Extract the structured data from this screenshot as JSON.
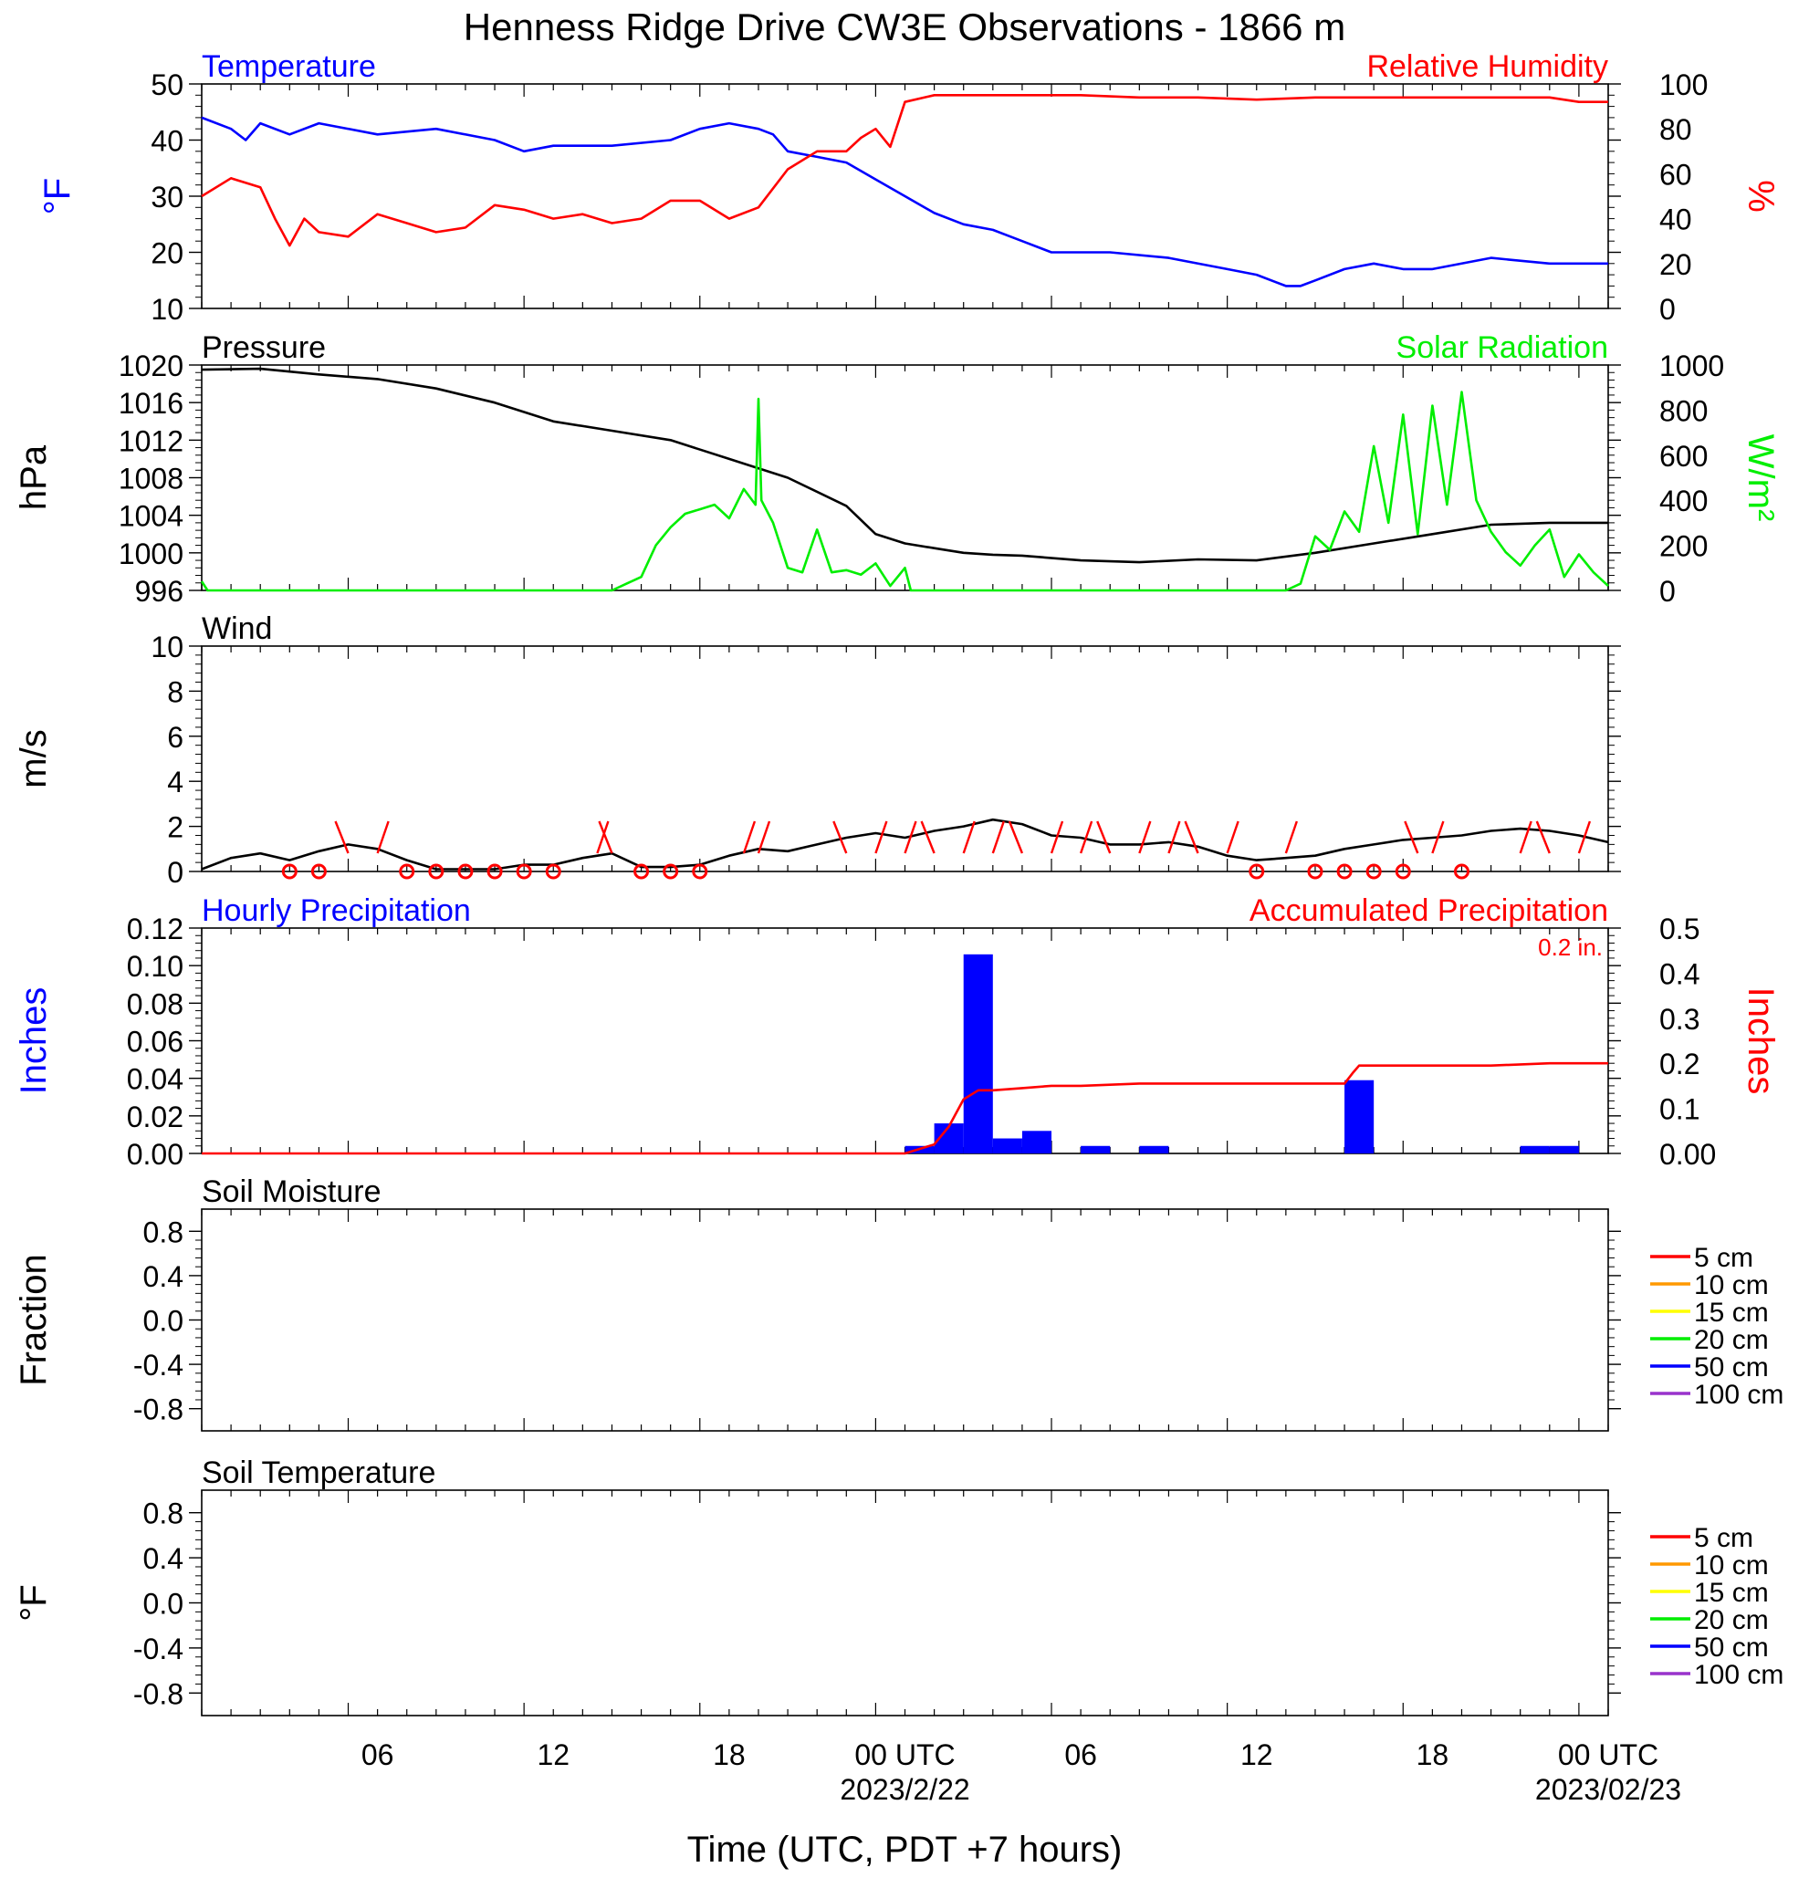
{
  "title": "Henness Ridge Drive CW3E Observations - 1866 m",
  "xaxis": {
    "label": "Time (UTC, PDT +7 hours)",
    "range_hours": [
      0,
      48
    ],
    "ticks": [
      {
        "h": 5,
        "label": "06"
      },
      {
        "h": 11,
        "label": "12"
      },
      {
        "h": 17,
        "label": "18"
      },
      {
        "h": 23,
        "label": "00 UTC",
        "date": "2023/2/22"
      },
      {
        "h": 29,
        "label": "06"
      },
      {
        "h": 35,
        "label": "12"
      },
      {
        "h": 41,
        "label": "18"
      },
      {
        "h": 47,
        "label": "00 UTC",
        "date": "2023/02/23"
      }
    ]
  },
  "panels": {
    "temp_rh": {
      "left_title": "Temperature",
      "right_title": "Relative Humidity",
      "left_units": "°F",
      "right_units": "%",
      "left_ticks": [
        "10",
        "20",
        "30",
        "40",
        "50"
      ],
      "right_ticks": [
        "0",
        "20",
        "40",
        "60",
        "80",
        "100"
      ]
    },
    "pressure": {
      "left_title": "Pressure",
      "right_title": "Solar Radiation",
      "left_units": "hPa",
      "right_units": "W/m²",
      "left_ticks": [
        "996",
        "1000",
        "1004",
        "1008",
        "1012",
        "1016",
        "1020"
      ],
      "right_ticks": [
        "0",
        "200",
        "400",
        "600",
        "800",
        "1000"
      ]
    },
    "wind": {
      "left_title": "Wind",
      "left_units": "m/s",
      "left_ticks": [
        "0",
        "2",
        "4",
        "6",
        "8",
        "10"
      ]
    },
    "precip": {
      "left_title": "Hourly Precipitation",
      "right_title": "Accumulated Precipitation",
      "total_label": "0.2 in.",
      "left_units": "Inches",
      "right_units": "Inches",
      "left_ticks": [
        "0.00",
        "0.02",
        "0.04",
        "0.06",
        "0.08",
        "0.10",
        "0.12"
      ],
      "right_ticks": [
        "0.00",
        "0.1",
        "0.2",
        "0.3",
        "0.4",
        "0.5"
      ]
    },
    "soil_moisture": {
      "left_title": "Soil Moisture",
      "left_units": "Fraction",
      "left_ticks": [
        "-0.8",
        "-0.4",
        "0.0",
        "0.4",
        "0.8"
      ],
      "legend": [
        {
          "label": "5 cm",
          "color": "#ff0000"
        },
        {
          "label": "10 cm",
          "color": "#ff9900"
        },
        {
          "label": "15 cm",
          "color": "#ffff00"
        },
        {
          "label": "20 cm",
          "color": "#00ee00"
        },
        {
          "label": "50 cm",
          "color": "#0000ff"
        },
        {
          "label": "100 cm",
          "color": "#9933cc"
        }
      ]
    },
    "soil_temp": {
      "left_title": "Soil Temperature",
      "left_units": "°F",
      "left_ticks": [
        "-0.8",
        "-0.4",
        "0.0",
        "0.4",
        "0.8"
      ],
      "legend": [
        {
          "label": "5 cm",
          "color": "#ff0000"
        },
        {
          "label": "10 cm",
          "color": "#ff9900"
        },
        {
          "label": "15 cm",
          "color": "#ffff00"
        },
        {
          "label": "20 cm",
          "color": "#00ee00"
        },
        {
          "label": "50 cm",
          "color": "#0000ff"
        },
        {
          "label": "100 cm",
          "color": "#9933cc"
        }
      ]
    }
  },
  "chart_data": [
    {
      "type": "line",
      "x_units": "hours since 2023-02-21 01 UTC",
      "ylim_left": [
        10,
        50
      ],
      "ylim_right": [
        0,
        100
      ],
      "series": [
        {
          "name": "Temperature",
          "axis": "left",
          "color": "#0000ff",
          "x": [
            0,
            1,
            1.5,
            2,
            3,
            4,
            6,
            8,
            10,
            11,
            12,
            14,
            16,
            17,
            18,
            19,
            19.5,
            20,
            21,
            22,
            23,
            24,
            25,
            26,
            27,
            28,
            29,
            31,
            33,
            35,
            36,
            37,
            37.5,
            38,
            39,
            40,
            41,
            42,
            44,
            46,
            48
          ],
          "y": [
            44,
            42,
            40,
            43,
            41,
            43,
            41,
            42,
            40,
            38,
            39,
            39,
            40,
            42,
            43,
            42,
            41,
            38,
            37,
            36,
            33,
            30,
            27,
            25,
            24,
            22,
            20,
            20,
            19,
            17,
            16,
            14,
            14,
            15,
            17,
            18,
            17,
            17,
            19,
            18,
            18
          ]
        },
        {
          "name": "Relative Humidity",
          "axis": "right",
          "color": "#ff0000",
          "x": [
            0,
            1,
            2,
            2.5,
            3,
            3.5,
            4,
            5,
            6,
            7,
            8,
            9,
            10,
            11,
            12,
            13,
            14,
            15,
            16,
            17,
            18,
            19,
            20,
            21,
            22,
            22.5,
            23,
            23.5,
            24,
            25,
            26,
            28,
            30,
            32,
            34,
            36,
            38,
            40,
            42,
            44,
            46,
            47,
            48
          ],
          "y": [
            50,
            58,
            54,
            40,
            28,
            40,
            34,
            32,
            42,
            38,
            34,
            36,
            46,
            44,
            40,
            42,
            38,
            40,
            48,
            48,
            40,
            45,
            62,
            70,
            70,
            76,
            80,
            72,
            92,
            95,
            95,
            95,
            95,
            94,
            94,
            93,
            94,
            94,
            94,
            94,
            94,
            92,
            92
          ]
        }
      ]
    },
    {
      "type": "line",
      "x_units": "hours since 2023-02-21 01 UTC",
      "ylim_left": [
        996,
        1020
      ],
      "ylim_right": [
        0,
        1000
      ],
      "series": [
        {
          "name": "Pressure",
          "axis": "left",
          "color": "#000000",
          "x": [
            0,
            2,
            4,
            6,
            8,
            10,
            12,
            14,
            16,
            18,
            20,
            22,
            23,
            24,
            25,
            26,
            27,
            28,
            30,
            32,
            34,
            36,
            38,
            40,
            42,
            44,
            46,
            48
          ],
          "y": [
            1019.5,
            1019.6,
            1019,
            1018.5,
            1017.5,
            1016,
            1014,
            1013,
            1012,
            1010,
            1008,
            1005,
            1002,
            1001,
            1000.5,
            1000,
            999.8,
            999.7,
            999.2,
            999,
            999.3,
            999.2,
            1000,
            1001,
            1002,
            1003,
            1003.2,
            1003.2
          ]
        },
        {
          "name": "Solar Radiation",
          "axis": "right",
          "color": "#00ee00",
          "x": [
            0,
            0.2,
            14,
            14.5,
            15,
            15.5,
            16,
            16.5,
            17,
            17.5,
            18,
            18.5,
            18.9,
            19,
            19.1,
            19.5,
            20,
            20.5,
            21,
            21.5,
            22,
            22.5,
            23,
            23.5,
            24,
            24.2,
            37,
            37.5,
            38,
            38.5,
            39,
            39.5,
            40,
            40.5,
            41,
            41.5,
            42,
            42.5,
            43,
            43.5,
            44,
            44.5,
            45,
            45.5,
            46,
            46.5,
            47,
            47.5,
            48
          ],
          "y": [
            40,
            0,
            0,
            30,
            60,
            200,
            280,
            340,
            360,
            380,
            320,
            450,
            380,
            850,
            400,
            300,
            100,
            80,
            270,
            80,
            90,
            70,
            120,
            20,
            100,
            0,
            0,
            30,
            240,
            180,
            350,
            260,
            640,
            300,
            780,
            250,
            820,
            380,
            880,
            400,
            260,
            170,
            110,
            200,
            270,
            60,
            160,
            80,
            20
          ]
        }
      ]
    },
    {
      "type": "line",
      "x_units": "hours since 2023-02-21 01 UTC",
      "ylim": [
        0,
        10
      ],
      "series": [
        {
          "name": "Wind",
          "color": "#000000",
          "x": [
            0,
            1,
            2,
            3,
            4,
            5,
            6,
            7,
            8,
            10,
            11,
            12,
            13,
            14,
            15,
            16,
            17,
            18,
            19,
            20,
            21,
            22,
            23,
            24,
            25,
            26,
            27,
            28,
            29,
            30,
            31,
            32,
            33,
            34,
            35,
            36,
            37,
            38,
            39,
            40,
            41,
            42,
            43,
            44,
            45,
            46,
            47,
            48
          ],
          "y": [
            0.1,
            0.6,
            0.8,
            0.5,
            0.9,
            1.2,
            1.0,
            0.5,
            0.1,
            0.1,
            0.3,
            0.3,
            0.6,
            0.8,
            0.2,
            0.2,
            0.3,
            0.7,
            1.0,
            0.9,
            1.2,
            1.5,
            1.7,
            1.5,
            1.8,
            2.0,
            2.3,
            2.1,
            1.6,
            1.5,
            1.2,
            1.2,
            1.3,
            1.1,
            0.7,
            0.5,
            0.6,
            0.7,
            1.0,
            1.2,
            1.4,
            1.5,
            1.6,
            1.8,
            1.9,
            1.8,
            1.6,
            1.3
          ]
        }
      ],
      "calm_markers_hours": [
        2,
        3,
        6,
        7,
        8,
        9,
        10,
        11,
        14,
        15,
        16,
        35,
        37,
        38,
        39,
        40,
        42
      ],
      "wind_barbs_hours": [
        4,
        5,
        12.5,
        13,
        17.5,
        18,
        21,
        22,
        23,
        24,
        25,
        26,
        27,
        28,
        29,
        30,
        31,
        32,
        33,
        34,
        36,
        40.5,
        41,
        44,
        45,
        46
      ]
    },
    {
      "type": "bar",
      "x_units": "hours since 2023-02-21 01 UTC",
      "ylim_left": [
        0,
        0.12
      ],
      "ylim_right": [
        0,
        0.5
      ],
      "series": [
        {
          "name": "Hourly Precipitation",
          "axis": "left",
          "color": "#0000ff",
          "x": [
            24,
            25,
            26,
            27,
            28,
            30,
            32,
            39,
            45,
            46
          ],
          "y": [
            0.004,
            0.016,
            0.106,
            0.008,
            0.012,
            0.004,
            0.004,
            0.039,
            0.004,
            0.004
          ]
        },
        {
          "name": "Accumulated Precipitation",
          "axis": "right",
          "color": "#ff0000",
          "type": "line",
          "x": [
            0,
            24,
            25,
            25.5,
            26,
            26.5,
            27,
            28,
            29,
            30,
            32,
            35,
            39,
            39.3,
            39.5,
            40,
            44,
            46,
            48
          ],
          "y": [
            0,
            0,
            0.02,
            0.06,
            0.12,
            0.14,
            0.14,
            0.145,
            0.15,
            0.15,
            0.155,
            0.155,
            0.155,
            0.18,
            0.195,
            0.195,
            0.195,
            0.2,
            0.2
          ]
        }
      ]
    },
    {
      "type": "line",
      "ylim": [
        -1,
        1
      ],
      "series": []
    },
    {
      "type": "line",
      "ylim": [
        -1,
        1
      ],
      "series": []
    }
  ]
}
